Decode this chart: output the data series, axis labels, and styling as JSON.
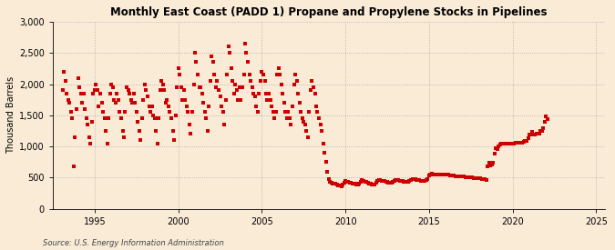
{
  "title": "Monthly East Coast (PADD 1) Propane and Propylene Stocks in Pipelines",
  "ylabel": "Thousand Barrels",
  "source": "Source: U.S. Energy Information Administration",
  "background_color": "#faebd7",
  "marker_color": "#cc0000",
  "xlim": [
    1992.5,
    2025.5
  ],
  "ylim": [
    0,
    3000
  ],
  "yticks": [
    0,
    500,
    1000,
    1500,
    2000,
    2500,
    3000
  ],
  "ytick_labels": [
    "0",
    "500",
    "1,000",
    "1,500",
    "2,000",
    "2,500",
    "3,000"
  ],
  "xticks": [
    1995,
    2000,
    2005,
    2010,
    2015,
    2020,
    2025
  ],
  "data": [
    [
      1993.08,
      1900
    ],
    [
      1993.17,
      2200
    ],
    [
      1993.25,
      2050
    ],
    [
      1993.33,
      1850
    ],
    [
      1993.42,
      1750
    ],
    [
      1993.5,
      1700
    ],
    [
      1993.58,
      1550
    ],
    [
      1993.67,
      1450
    ],
    [
      1993.75,
      680
    ],
    [
      1993.83,
      1150
    ],
    [
      1993.92,
      1600
    ],
    [
      1994.0,
      2100
    ],
    [
      1994.08,
      1950
    ],
    [
      1994.17,
      1850
    ],
    [
      1994.25,
      1700
    ],
    [
      1994.33,
      1850
    ],
    [
      1994.42,
      1600
    ],
    [
      1994.5,
      1450
    ],
    [
      1994.58,
      1350
    ],
    [
      1994.67,
      1150
    ],
    [
      1994.75,
      1050
    ],
    [
      1994.83,
      1400
    ],
    [
      1994.92,
      1850
    ],
    [
      1995.0,
      1900
    ],
    [
      1995.08,
      2000
    ],
    [
      1995.17,
      1900
    ],
    [
      1995.25,
      1650
    ],
    [
      1995.33,
      1850
    ],
    [
      1995.42,
      1700
    ],
    [
      1995.5,
      1550
    ],
    [
      1995.58,
      1450
    ],
    [
      1995.67,
      1250
    ],
    [
      1995.75,
      1050
    ],
    [
      1995.83,
      1450
    ],
    [
      1995.92,
      1850
    ],
    [
      1996.0,
      2000
    ],
    [
      1996.08,
      1950
    ],
    [
      1996.17,
      1750
    ],
    [
      1996.25,
      1700
    ],
    [
      1996.33,
      1850
    ],
    [
      1996.42,
      1750
    ],
    [
      1996.5,
      1550
    ],
    [
      1996.58,
      1450
    ],
    [
      1996.67,
      1250
    ],
    [
      1996.75,
      1150
    ],
    [
      1996.83,
      1550
    ],
    [
      1996.92,
      1950
    ],
    [
      1997.0,
      1900
    ],
    [
      1997.08,
      1850
    ],
    [
      1997.17,
      1750
    ],
    [
      1997.25,
      1700
    ],
    [
      1997.33,
      1850
    ],
    [
      1997.42,
      1700
    ],
    [
      1997.5,
      1550
    ],
    [
      1997.58,
      1400
    ],
    [
      1997.67,
      1250
    ],
    [
      1997.75,
      1100
    ],
    [
      1997.83,
      1450
    ],
    [
      1997.92,
      1750
    ],
    [
      1998.0,
      2000
    ],
    [
      1998.08,
      1900
    ],
    [
      1998.17,
      1800
    ],
    [
      1998.25,
      1650
    ],
    [
      1998.33,
      1550
    ],
    [
      1998.42,
      1650
    ],
    [
      1998.5,
      1500
    ],
    [
      1998.58,
      1450
    ],
    [
      1998.67,
      1250
    ],
    [
      1998.75,
      1050
    ],
    [
      1998.83,
      1450
    ],
    [
      1998.92,
      1900
    ],
    [
      1999.0,
      2050
    ],
    [
      1999.08,
      2000
    ],
    [
      1999.17,
      1900
    ],
    [
      1999.25,
      1700
    ],
    [
      1999.33,
      1750
    ],
    [
      1999.42,
      1650
    ],
    [
      1999.5,
      1550
    ],
    [
      1999.58,
      1450
    ],
    [
      1999.67,
      1250
    ],
    [
      1999.75,
      1100
    ],
    [
      1999.83,
      1500
    ],
    [
      1999.92,
      1950
    ],
    [
      2000.0,
      2250
    ],
    [
      2000.08,
      2150
    ],
    [
      2000.17,
      1950
    ],
    [
      2000.25,
      1750
    ],
    [
      2000.33,
      1900
    ],
    [
      2000.42,
      1750
    ],
    [
      2000.5,
      1650
    ],
    [
      2000.58,
      1550
    ],
    [
      2000.67,
      1350
    ],
    [
      2000.75,
      1200
    ],
    [
      2000.83,
      1550
    ],
    [
      2000.92,
      2000
    ],
    [
      2001.0,
      2500
    ],
    [
      2001.08,
      2350
    ],
    [
      2001.17,
      2150
    ],
    [
      2001.25,
      1950
    ],
    [
      2001.33,
      1950
    ],
    [
      2001.42,
      1850
    ],
    [
      2001.5,
      1700
    ],
    [
      2001.58,
      1550
    ],
    [
      2001.67,
      1450
    ],
    [
      2001.75,
      1250
    ],
    [
      2001.83,
      1650
    ],
    [
      2001.92,
      2050
    ],
    [
      2002.0,
      2450
    ],
    [
      2002.08,
      2350
    ],
    [
      2002.17,
      2150
    ],
    [
      2002.25,
      1950
    ],
    [
      2002.33,
      2050
    ],
    [
      2002.42,
      1900
    ],
    [
      2002.5,
      1800
    ],
    [
      2002.58,
      1650
    ],
    [
      2002.67,
      1550
    ],
    [
      2002.75,
      1350
    ],
    [
      2002.83,
      1750
    ],
    [
      2002.92,
      2150
    ],
    [
      2003.0,
      2600
    ],
    [
      2003.08,
      2500
    ],
    [
      2003.17,
      2250
    ],
    [
      2003.25,
      2050
    ],
    [
      2003.33,
      1850
    ],
    [
      2003.42,
      2000
    ],
    [
      2003.5,
      1900
    ],
    [
      2003.58,
      1750
    ],
    [
      2003.67,
      1950
    ],
    [
      2003.75,
      1750
    ],
    [
      2003.83,
      1950
    ],
    [
      2003.92,
      2150
    ],
    [
      2004.0,
      2650
    ],
    [
      2004.08,
      2500
    ],
    [
      2004.17,
      2350
    ],
    [
      2004.25,
      2150
    ],
    [
      2004.33,
      2050
    ],
    [
      2004.42,
      1950
    ],
    [
      2004.5,
      1850
    ],
    [
      2004.58,
      1800
    ],
    [
      2004.67,
      1650
    ],
    [
      2004.75,
      1550
    ],
    [
      2004.83,
      1850
    ],
    [
      2004.92,
      2050
    ],
    [
      2005.0,
      2200
    ],
    [
      2005.08,
      2150
    ],
    [
      2005.17,
      2050
    ],
    [
      2005.25,
      1850
    ],
    [
      2005.33,
      1750
    ],
    [
      2005.42,
      1850
    ],
    [
      2005.5,
      1750
    ],
    [
      2005.58,
      1650
    ],
    [
      2005.67,
      1550
    ],
    [
      2005.75,
      1450
    ],
    [
      2005.83,
      1550
    ],
    [
      2005.92,
      2150
    ],
    [
      2006.0,
      2250
    ],
    [
      2006.08,
      2150
    ],
    [
      2006.17,
      2000
    ],
    [
      2006.25,
      1850
    ],
    [
      2006.33,
      1700
    ],
    [
      2006.42,
      1550
    ],
    [
      2006.5,
      1450
    ],
    [
      2006.58,
      1550
    ],
    [
      2006.67,
      1450
    ],
    [
      2006.75,
      1350
    ],
    [
      2006.83,
      1650
    ],
    [
      2006.92,
      2000
    ],
    [
      2007.0,
      2150
    ],
    [
      2007.08,
      2050
    ],
    [
      2007.17,
      1850
    ],
    [
      2007.25,
      1700
    ],
    [
      2007.33,
      1550
    ],
    [
      2007.42,
      1450
    ],
    [
      2007.5,
      1400
    ],
    [
      2007.58,
      1350
    ],
    [
      2007.67,
      1250
    ],
    [
      2007.75,
      1150
    ],
    [
      2007.83,
      1550
    ],
    [
      2007.92,
      1900
    ],
    [
      2008.0,
      2050
    ],
    [
      2008.08,
      1950
    ],
    [
      2008.17,
      1850
    ],
    [
      2008.25,
      1650
    ],
    [
      2008.33,
      1550
    ],
    [
      2008.42,
      1450
    ],
    [
      2008.5,
      1350
    ],
    [
      2008.58,
      1250
    ],
    [
      2008.67,
      1050
    ],
    [
      2008.75,
      900
    ],
    [
      2008.83,
      750
    ],
    [
      2008.92,
      600
    ],
    [
      2009.0,
      480
    ],
    [
      2009.08,
      440
    ],
    [
      2009.17,
      420
    ],
    [
      2009.25,
      400
    ],
    [
      2009.33,
      410
    ],
    [
      2009.42,
      400
    ],
    [
      2009.5,
      390
    ],
    [
      2009.58,
      380
    ],
    [
      2009.67,
      370
    ],
    [
      2009.75,
      360
    ],
    [
      2009.83,
      390
    ],
    [
      2009.92,
      420
    ],
    [
      2010.0,
      450
    ],
    [
      2010.08,
      440
    ],
    [
      2010.17,
      430
    ],
    [
      2010.25,
      420
    ],
    [
      2010.33,
      415
    ],
    [
      2010.42,
      410
    ],
    [
      2010.5,
      400
    ],
    [
      2010.58,
      400
    ],
    [
      2010.67,
      390
    ],
    [
      2010.75,
      390
    ],
    [
      2010.83,
      410
    ],
    [
      2010.92,
      440
    ],
    [
      2011.0,
      460
    ],
    [
      2011.08,
      450
    ],
    [
      2011.17,
      440
    ],
    [
      2011.25,
      430
    ],
    [
      2011.33,
      420
    ],
    [
      2011.42,
      410
    ],
    [
      2011.5,
      400
    ],
    [
      2011.58,
      390
    ],
    [
      2011.67,
      390
    ],
    [
      2011.75,
      390
    ],
    [
      2011.83,
      415
    ],
    [
      2011.92,
      445
    ],
    [
      2012.0,
      465
    ],
    [
      2012.08,
      460
    ],
    [
      2012.17,
      455
    ],
    [
      2012.25,
      450
    ],
    [
      2012.33,
      445
    ],
    [
      2012.42,
      440
    ],
    [
      2012.5,
      430
    ],
    [
      2012.58,
      425
    ],
    [
      2012.67,
      420
    ],
    [
      2012.75,
      420
    ],
    [
      2012.83,
      435
    ],
    [
      2012.92,
      455
    ],
    [
      2013.0,
      470
    ],
    [
      2013.08,
      465
    ],
    [
      2013.17,
      460
    ],
    [
      2013.25,
      450
    ],
    [
      2013.33,
      445
    ],
    [
      2013.42,
      445
    ],
    [
      2013.5,
      435
    ],
    [
      2013.58,
      430
    ],
    [
      2013.67,
      430
    ],
    [
      2013.75,
      430
    ],
    [
      2013.83,
      450
    ],
    [
      2013.92,
      465
    ],
    [
      2014.0,
      480
    ],
    [
      2014.08,
      480
    ],
    [
      2014.17,
      475
    ],
    [
      2014.25,
      470
    ],
    [
      2014.33,
      465
    ],
    [
      2014.42,
      460
    ],
    [
      2014.5,
      455
    ],
    [
      2014.58,
      455
    ],
    [
      2014.67,
      455
    ],
    [
      2014.75,
      455
    ],
    [
      2014.83,
      465
    ],
    [
      2014.92,
      480
    ],
    [
      2015.0,
      540
    ],
    [
      2015.08,
      550
    ],
    [
      2015.17,
      560
    ],
    [
      2015.25,
      555
    ],
    [
      2015.33,
      555
    ],
    [
      2015.42,
      550
    ],
    [
      2015.5,
      548
    ],
    [
      2015.58,
      548
    ],
    [
      2015.67,
      548
    ],
    [
      2015.75,
      548
    ],
    [
      2015.83,
      550
    ],
    [
      2015.92,
      552
    ],
    [
      2016.0,
      555
    ],
    [
      2016.08,
      550
    ],
    [
      2016.17,
      545
    ],
    [
      2016.25,
      542
    ],
    [
      2016.33,
      538
    ],
    [
      2016.42,
      534
    ],
    [
      2016.5,
      530
    ],
    [
      2016.58,
      528
    ],
    [
      2016.67,
      528
    ],
    [
      2016.75,
      525
    ],
    [
      2016.83,
      524
    ],
    [
      2016.92,
      524
    ],
    [
      2017.0,
      522
    ],
    [
      2017.08,
      518
    ],
    [
      2017.17,
      514
    ],
    [
      2017.25,
      510
    ],
    [
      2017.33,
      506
    ],
    [
      2017.42,
      504
    ],
    [
      2017.5,
      502
    ],
    [
      2017.58,
      500
    ],
    [
      2017.67,
      497
    ],
    [
      2017.75,
      495
    ],
    [
      2017.83,
      492
    ],
    [
      2017.92,
      490
    ],
    [
      2018.0,
      495
    ],
    [
      2018.08,
      488
    ],
    [
      2018.17,
      482
    ],
    [
      2018.25,
      478
    ],
    [
      2018.33,
      472
    ],
    [
      2018.42,
      468
    ],
    [
      2018.5,
      680
    ],
    [
      2018.58,
      740
    ],
    [
      2018.67,
      690
    ],
    [
      2018.75,
      710
    ],
    [
      2018.83,
      740
    ],
    [
      2018.92,
      880
    ],
    [
      2019.0,
      980
    ],
    [
      2019.08,
      960
    ],
    [
      2019.17,
      1000
    ],
    [
      2019.25,
      1030
    ],
    [
      2019.33,
      1040
    ],
    [
      2019.42,
      1040
    ],
    [
      2019.5,
      1040
    ],
    [
      2019.58,
      1040
    ],
    [
      2019.67,
      1050
    ],
    [
      2019.75,
      1050
    ],
    [
      2019.83,
      1040
    ],
    [
      2019.92,
      1050
    ],
    [
      2020.0,
      1040
    ],
    [
      2020.08,
      1050
    ],
    [
      2020.17,
      1060
    ],
    [
      2020.25,
      1055
    ],
    [
      2020.33,
      1055
    ],
    [
      2020.42,
      1055
    ],
    [
      2020.5,
      1055
    ],
    [
      2020.58,
      1060
    ],
    [
      2020.67,
      1070
    ],
    [
      2020.75,
      1090
    ],
    [
      2020.83,
      1095
    ],
    [
      2020.92,
      1140
    ],
    [
      2021.0,
      1190
    ],
    [
      2021.08,
      1195
    ],
    [
      2021.17,
      1240
    ],
    [
      2021.25,
      1195
    ],
    [
      2021.33,
      1195
    ],
    [
      2021.42,
      1200
    ],
    [
      2021.5,
      1200
    ],
    [
      2021.58,
      1200
    ],
    [
      2021.67,
      1245
    ],
    [
      2021.75,
      1250
    ],
    [
      2021.83,
      1295
    ],
    [
      2021.92,
      1390
    ],
    [
      2022.0,
      1490
    ],
    [
      2022.08,
      1440
    ]
  ]
}
